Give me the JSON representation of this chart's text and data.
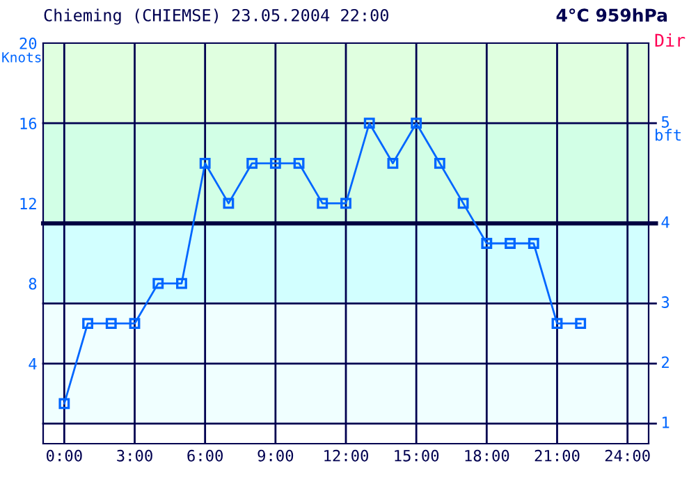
{
  "chart_data": {
    "type": "line",
    "title": "Chieming (CHIEMSE) 23.05.2004 22:00",
    "subtitle": "4°C 959hPa",
    "ylabel": "Knots",
    "annotations": [
      "Dir",
      "bft",
      "1",
      "2",
      "3",
      "4",
      "5"
    ],
    "x": [
      0,
      1,
      2,
      3,
      4,
      5,
      6,
      7,
      8,
      9,
      10,
      11,
      12,
      13,
      14,
      15,
      16,
      17,
      18,
      19,
      20,
      21,
      22
    ],
    "series": [
      {
        "color": "#0066ff",
        "values": [
          2,
          6,
          6,
          6,
          8,
          8,
          14,
          12,
          14,
          14,
          14,
          12,
          12,
          16,
          14,
          16,
          14,
          12,
          10,
          10,
          10,
          6,
          6
        ]
      }
    ],
    "xlim": [
      -0.9,
      24.9
    ],
    "xticks": [
      {
        "value": 0,
        "label": "0:00"
      },
      {
        "value": 3,
        "label": "3:00"
      },
      {
        "value": 6,
        "label": "6:00"
      },
      {
        "value": 9,
        "label": "9:00"
      },
      {
        "value": 12,
        "label": "12:00"
      },
      {
        "value": 15,
        "label": "15:00"
      },
      {
        "value": 18,
        "label": "18:00"
      },
      {
        "value": 21,
        "label": "21:00"
      },
      {
        "value": 24,
        "label": "24:00"
      }
    ],
    "ylim": [
      0,
      20
    ],
    "yticks": [
      4,
      8,
      12,
      16,
      20
    ],
    "bands": [
      {
        "axis": "y",
        "from": 1,
        "to": 7,
        "color": "#f0ffff"
      },
      {
        "axis": "y",
        "from": 7,
        "to": 11,
        "color": "#d2ffff"
      },
      {
        "axis": "y",
        "from": 11,
        "to": 16,
        "color": "#d2ffe6"
      },
      {
        "axis": "y",
        "from": 16,
        "to": 20,
        "color": "#e0ffe0"
      }
    ],
    "ref_lines": [
      {
        "axis": "y",
        "value": 1
      },
      {
        "axis": "y",
        "value": 4
      },
      {
        "axis": "y",
        "value": 7
      },
      {
        "axis": "y",
        "value": 11,
        "color": "#000040"
      },
      {
        "axis": "y",
        "value": 16
      }
    ],
    "grid": "x",
    "marker": "square",
    "line_style": "solid"
  }
}
